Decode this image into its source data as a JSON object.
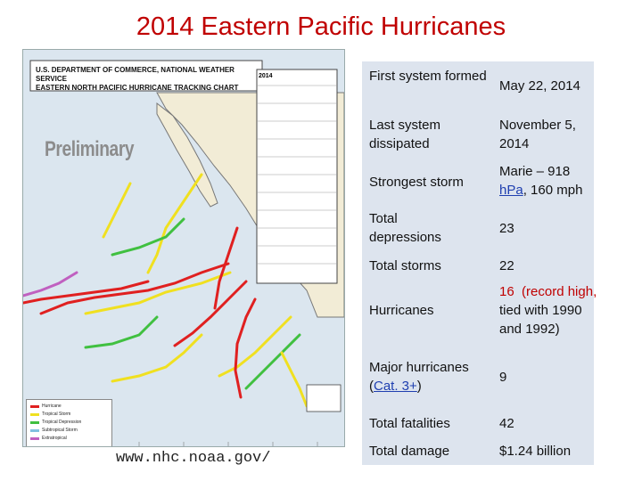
{
  "title": "2014 Eastern Pacific Hurricanes",
  "map": {
    "header_line1": "U.S. DEPARTMENT OF COMMERCE, NATIONAL WEATHER SERVICE",
    "header_line2": "EASTERN NORTH PACIFIC HURRICANE TRACKING CHART",
    "year_label": "2014",
    "watermark": "Preliminary",
    "legend": [
      "Hurricane",
      "Tropical Storm",
      "Tropical Depression",
      "Subtropical Storm",
      "Extratropical"
    ],
    "colors": {
      "hurricane": "#e02020",
      "tropical_storm": "#f0e020",
      "tropical_depression": "#40c040",
      "extratropical": "#c060c0",
      "ocean": "#dbe6ef",
      "land": "#f2ecd6"
    }
  },
  "source_url": "www.nhc.noaa.gov/",
  "info": {
    "rows": [
      {
        "label": "First system formed",
        "value": "May 22, 2014"
      },
      {
        "label": "Last system dissipated",
        "value": "November 5, 2014"
      },
      {
        "label": "Strongest storm",
        "value_prefix": "Marie – 918 ",
        "value_link": "hPa",
        "value_suffix": ", 160 mph"
      },
      {
        "label": "Total depressions",
        "value": "23"
      },
      {
        "label": "Total storms",
        "value": "22"
      },
      {
        "label": "Hurricanes",
        "value_a": "16",
        "value_b": "(record high,",
        "value_c": "tied with 1990 and 1992)"
      },
      {
        "label_prefix": "Major hurricanes",
        "label_link": "Cat. 3+",
        "value": "9"
      },
      {
        "label": "Total fatalities",
        "value": "42"
      },
      {
        "label": "Total damage",
        "value": "$1.24 billion"
      }
    ]
  }
}
